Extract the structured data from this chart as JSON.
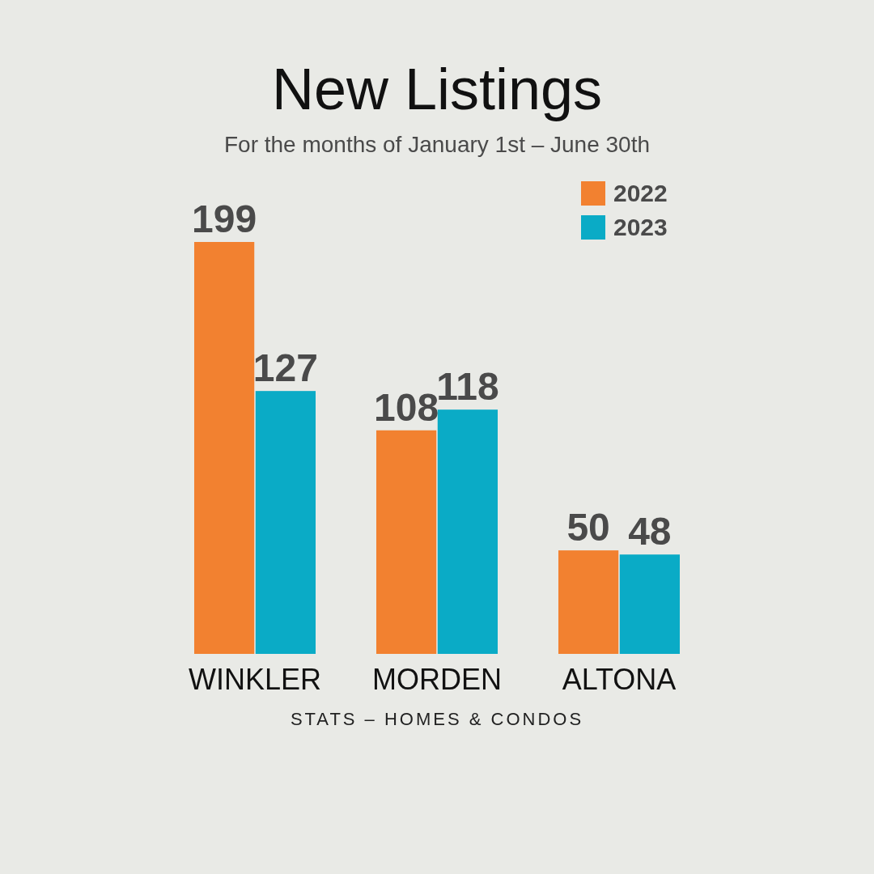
{
  "chart_data": {
    "type": "bar",
    "title": "New Listings",
    "subtitle": "For the months of January 1st – June 30th",
    "categories": [
      "WINKLER",
      "MORDEN",
      "ALTONA"
    ],
    "series": [
      {
        "name": "2022",
        "color": "#f28130",
        "values": [
          199,
          108,
          50
        ]
      },
      {
        "name": "2023",
        "color": "#0aabc6",
        "values": [
          127,
          118,
          48
        ]
      }
    ],
    "data_labels": true,
    "legend": "top right",
    "annotations": [
      "STATS – HOMES & CONDOS"
    ]
  }
}
